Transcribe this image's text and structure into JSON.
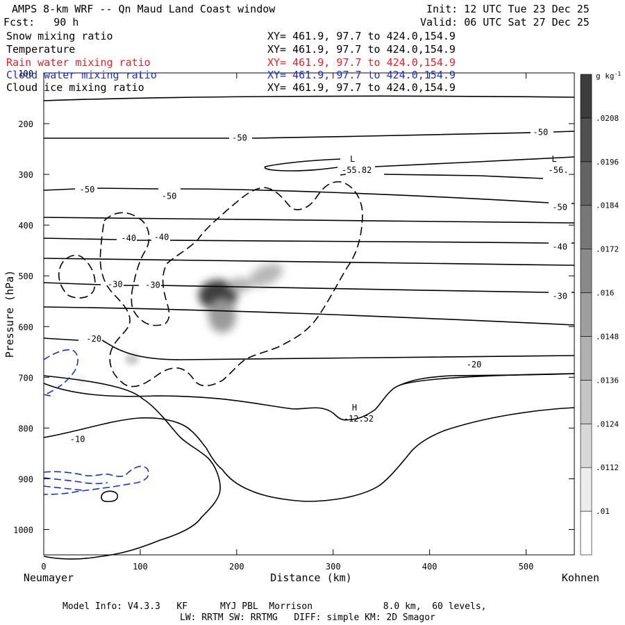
{
  "header": {
    "title": "AMPS 8-km WRF -- Qn Maud Land Coast window",
    "init": "Init: 12 UTC Tue 23 Dec 25",
    "fcst": "Fcst:   90 h",
    "valid": "Valid: 06 UTC Sat 27 Dec 25"
  },
  "fields": [
    {
      "name": "Snow mixing ratio",
      "xy": "XY= 461.9, 97.7 to 424.0,154.9",
      "color": "#000000"
    },
    {
      "name": "Temperature",
      "xy": "XY= 461.9, 97.7 to 424.0,154.9",
      "color": "#000000"
    },
    {
      "name": "Rain water mixing ratio",
      "xy": "XY= 461.9, 97.7 to 424.0,154.9",
      "color": "#e8202a"
    },
    {
      "name": "Cloud water mixing ratio",
      "xy": "XY= 461.9, 97.7 to 424.0,154.9",
      "color": "#1a2fd0"
    },
    {
      "name": "Cloud ice mixing ratio",
      "xy": "XY= 461.9, 97.7 to 424.0,154.9",
      "color": "#000000"
    }
  ],
  "footer": {
    "line1": "Model Info: V4.3.3   KF      MYJ PBL  Morrison             8.0 km,  60 levels,",
    "line2": "LW: RRTM SW: RRTMG   DIFF: simple KM: 2D Smagor"
  },
  "chart_data": {
    "type": "contour",
    "xlabel": "Distance (km)",
    "ylabel": "Pressure (hPa)",
    "xlim": [
      0,
      550
    ],
    "ylim": [
      1050,
      100
    ],
    "x_ticks": [
      0,
      100,
      200,
      300,
      400,
      500
    ],
    "y_ticks": [
      100,
      200,
      300,
      400,
      500,
      600,
      700,
      800,
      900,
      1000
    ],
    "endpoint_left": "Neumayer",
    "endpoint_right": "Kohnen",
    "colorbar": {
      "unit": "g kg",
      "unit_exponent": "-1",
      "tick_labels": [
        ".01",
        ".0112",
        ".0124",
        ".0136",
        ".0148",
        ".016",
        ".0172",
        ".0184",
        ".0196",
        ".0208"
      ],
      "range": [
        0.0094,
        0.0214
      ]
    },
    "temperature_contour_labels": [
      {
        "text": "-50",
        "x": 203,
        "p": 228
      },
      {
        "text": "-50",
        "x": 515,
        "p": 217
      },
      {
        "text": "-50",
        "x": 45,
        "p": 330
      },
      {
        "text": "-50",
        "x": 130,
        "p": 343
      },
      {
        "text": "-50",
        "x": 535,
        "p": 365
      },
      {
        "text": "-40",
        "x": 88,
        "p": 426
      },
      {
        "text": "-40",
        "x": 122,
        "p": 424
      },
      {
        "text": "-40",
        "x": 535,
        "p": 443
      },
      {
        "text": "-30",
        "x": 74,
        "p": 517
      },
      {
        "text": "-30",
        "x": 113,
        "p": 518
      },
      {
        "text": "-30",
        "x": 535,
        "p": 540
      },
      {
        "text": "-20",
        "x": 52,
        "p": 624
      },
      {
        "text": "-20",
        "x": 446,
        "p": 675
      },
      {
        "text": "-10",
        "x": 35,
        "p": 822
      }
    ],
    "extrema": [
      {
        "type": "L",
        "value": "-55.82",
        "x": 323,
        "p": 289
      },
      {
        "type": "L",
        "value": "-56.",
        "x": 532,
        "p": 289
      },
      {
        "type": "H",
        "value": "-12.52",
        "x": 325,
        "p": 779
      }
    ]
  }
}
